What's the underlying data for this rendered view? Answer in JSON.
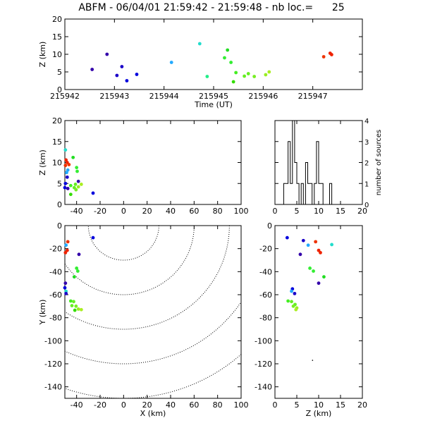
{
  "title": "ABFM - 06/04/01 21:59:42 - 21:59:48 - nb loc.=      25",
  "chart_data": [
    {
      "panel": "time-z",
      "type": "scatter",
      "xlabel": "Time (UT)",
      "ylabel": "Z (km)",
      "xlim": [
        215942,
        215948
      ],
      "ylim": [
        0,
        20
      ],
      "xticks": [
        "215942",
        "215943",
        "215944",
        "215945",
        "215946",
        "215947"
      ],
      "yticks": [
        "0",
        "5",
        "10",
        "15",
        "20"
      ],
      "points": [
        {
          "x": 215942.55,
          "y": 5.7,
          "color": "#3300aa"
        },
        {
          "x": 215942.85,
          "y": 10.0,
          "color": "#3300aa"
        },
        {
          "x": 215943.05,
          "y": 4.0,
          "color": "#1a00c8"
        },
        {
          "x": 215943.15,
          "y": 6.5,
          "color": "#1a00c8"
        },
        {
          "x": 215943.25,
          "y": 2.5,
          "color": "#0000dd"
        },
        {
          "x": 215943.45,
          "y": 4.3,
          "color": "#0000dd"
        },
        {
          "x": 215944.15,
          "y": 7.7,
          "color": "#22aaff"
        },
        {
          "x": 215944.72,
          "y": 13.0,
          "color": "#22ddcc"
        },
        {
          "x": 215944.87,
          "y": 3.7,
          "color": "#22ee88"
        },
        {
          "x": 215945.28,
          "y": 11.2,
          "color": "#22dd22"
        },
        {
          "x": 215945.22,
          "y": 9.0,
          "color": "#33ee33"
        },
        {
          "x": 215945.35,
          "y": 7.7,
          "color": "#33ee33"
        },
        {
          "x": 215945.4,
          "y": 2.2,
          "color": "#33dd00"
        },
        {
          "x": 215945.45,
          "y": 4.8,
          "color": "#44ee22"
        },
        {
          "x": 215945.62,
          "y": 3.8,
          "color": "#66ee22"
        },
        {
          "x": 215945.7,
          "y": 4.5,
          "color": "#66ee22"
        },
        {
          "x": 215945.82,
          "y": 3.7,
          "color": "#77ee22"
        },
        {
          "x": 215946.05,
          "y": 4.2,
          "color": "#99ee22"
        },
        {
          "x": 215946.12,
          "y": 5.0,
          "color": "#aaee22"
        },
        {
          "x": 215947.22,
          "y": 9.3,
          "color": "#ee3300"
        },
        {
          "x": 215947.35,
          "y": 10.3,
          "color": "#ee2200"
        },
        {
          "x": 215947.38,
          "y": 9.9,
          "color": "#ee2200"
        }
      ]
    },
    {
      "panel": "x-z",
      "type": "scatter",
      "xlabel": "",
      "ylabel": "Z (km)",
      "xlim": [
        -50,
        100
      ],
      "ylim": [
        0,
        20
      ],
      "xticks": [
        "-40",
        "-20",
        "0",
        "20",
        "40",
        "60",
        "80",
        "100"
      ],
      "yticks": [
        "0",
        "5",
        "10",
        "15",
        "20"
      ],
      "points": [
        {
          "x": -49.5,
          "y": 13.0,
          "color": "#22ddcc"
        },
        {
          "x": -49.0,
          "y": 10.6,
          "color": "#ee2200"
        },
        {
          "x": -48.0,
          "y": 10.0,
          "color": "#ee2200"
        },
        {
          "x": -46.5,
          "y": 9.5,
          "color": "#ee3300"
        },
        {
          "x": -49.5,
          "y": 9.3,
          "color": "#ee3300"
        },
        {
          "x": -47.5,
          "y": 8.2,
          "color": "#22aaff"
        },
        {
          "x": -48.5,
          "y": 7.6,
          "color": "#22aaff"
        },
        {
          "x": -48.0,
          "y": 6.5,
          "color": "#1a00c8"
        },
        {
          "x": -49.5,
          "y": 5.0,
          "color": "#0000dd"
        },
        {
          "x": -47.5,
          "y": 3.8,
          "color": "#3300aa"
        },
        {
          "x": -50.0,
          "y": 4.0,
          "color": "#0000dd"
        },
        {
          "x": -43.0,
          "y": 11.2,
          "color": "#22dd22"
        },
        {
          "x": -40.0,
          "y": 8.8,
          "color": "#33ee33"
        },
        {
          "x": -39.5,
          "y": 7.9,
          "color": "#33ee33"
        },
        {
          "x": -38.5,
          "y": 5.5,
          "color": "#3300aa"
        },
        {
          "x": -45.0,
          "y": 4.5,
          "color": "#44ee22"
        },
        {
          "x": -42.0,
          "y": 4.0,
          "color": "#66ee22"
        },
        {
          "x": -41.0,
          "y": 4.8,
          "color": "#66ee22"
        },
        {
          "x": -40.5,
          "y": 3.5,
          "color": "#77ee22"
        },
        {
          "x": -38.5,
          "y": 4.2,
          "color": "#99ee22"
        },
        {
          "x": -36.0,
          "y": 4.8,
          "color": "#aaee22"
        },
        {
          "x": -45.0,
          "y": 2.4,
          "color": "#33dd00"
        },
        {
          "x": -26.0,
          "y": 2.7,
          "color": "#0000dd"
        }
      ]
    },
    {
      "panel": "histogram",
      "type": "bar",
      "xlabel": "",
      "ylabel": "number of sources",
      "xlim": [
        0,
        20
      ],
      "ylim": [
        0,
        4
      ],
      "xticks": [
        "0",
        "5",
        "10",
        "15",
        "20"
      ],
      "yticks": [
        "0",
        "1",
        "2",
        "3",
        "4"
      ],
      "bin_width": 0.5,
      "bins_start": [
        2.0,
        2.5,
        3.0,
        3.5,
        4.0,
        4.5,
        5.0,
        5.5,
        6.0,
        6.5,
        7.0,
        7.5,
        8.0,
        8.5,
        9.0,
        9.5,
        10.0,
        10.5,
        11.0,
        11.5,
        12.0,
        12.5,
        13.0
      ],
      "counts": [
        1,
        1,
        3,
        1,
        4,
        2,
        1,
        0,
        1,
        0,
        2,
        1,
        1,
        0,
        1,
        3,
        1,
        1,
        0,
        0,
        0,
        1,
        0
      ]
    },
    {
      "panel": "x-y",
      "type": "scatter",
      "xlabel": "X (km)",
      "ylabel": "Y (km)",
      "xlim": [
        -50,
        100
      ],
      "ylim": [
        -150,
        0
      ],
      "xticks": [
        "-40",
        "-20",
        "0",
        "20",
        "40",
        "60",
        "80",
        "100"
      ],
      "yticks": [
        "0",
        "-20",
        "-40",
        "-60",
        "-80",
        "-100",
        "-120",
        "-140"
      ],
      "range_rings_km": [
        30,
        60,
        90,
        120,
        150,
        180
      ],
      "ring_center": [
        0,
        0
      ],
      "points": [
        {
          "x": -26.0,
          "y": -10.5,
          "color": "#0000dd"
        },
        {
          "x": -47.5,
          "y": -14.0,
          "color": "#ee3300"
        },
        {
          "x": -49.0,
          "y": -17.0,
          "color": "#22aaff"
        },
        {
          "x": -48.0,
          "y": -21.5,
          "color": "#ee2200"
        },
        {
          "x": -49.5,
          "y": -23.5,
          "color": "#ee2200"
        },
        {
          "x": -38.0,
          "y": -25.0,
          "color": "#3300aa"
        },
        {
          "x": -40.0,
          "y": -37.0,
          "color": "#33ee33"
        },
        {
          "x": -39.0,
          "y": -39.5,
          "color": "#33ee33"
        },
        {
          "x": -42.0,
          "y": -44.5,
          "color": "#22dd22"
        },
        {
          "x": -49.5,
          "y": -50.0,
          "color": "#3300aa"
        },
        {
          "x": -50.0,
          "y": -54.0,
          "color": "#0000dd"
        },
        {
          "x": -49.0,
          "y": -57.0,
          "color": "#22ddcc"
        },
        {
          "x": -49.0,
          "y": -59.0,
          "color": "#1a00c8"
        },
        {
          "x": -45.0,
          "y": -65.5,
          "color": "#44ee22"
        },
        {
          "x": -42.5,
          "y": -66.0,
          "color": "#66ee22"
        },
        {
          "x": -44.0,
          "y": -69.5,
          "color": "#66ee22"
        },
        {
          "x": -40.5,
          "y": -70.0,
          "color": "#77ee22"
        },
        {
          "x": -38.5,
          "y": -72.5,
          "color": "#99ee22"
        },
        {
          "x": -36.0,
          "y": -73.0,
          "color": "#aaee22"
        },
        {
          "x": -41.5,
          "y": -73.5,
          "color": "#33dd00"
        }
      ]
    },
    {
      "panel": "z-y",
      "type": "scatter",
      "xlabel": "Z (km)",
      "ylabel": "",
      "xlim": [
        0,
        20
      ],
      "ylim": [
        -150,
        0
      ],
      "xticks": [
        "0",
        "5",
        "10",
        "15",
        "20"
      ],
      "yticks": [
        "0",
        "-20",
        "-40",
        "-60",
        "-80",
        "-100",
        "-120",
        "-140"
      ],
      "points": [
        {
          "x": 2.8,
          "y": -10.5,
          "color": "#0000dd"
        },
        {
          "x": 6.5,
          "y": -13.0,
          "color": "#1a00c8"
        },
        {
          "x": 9.3,
          "y": -14.0,
          "color": "#ee3300"
        },
        {
          "x": 7.6,
          "y": -17.0,
          "color": "#22aaff"
        },
        {
          "x": 13.0,
          "y": -16.5,
          "color": "#22ddcc"
        },
        {
          "x": 10.0,
          "y": -21.5,
          "color": "#ee2200"
        },
        {
          "x": 10.4,
          "y": -23.5,
          "color": "#ee2200"
        },
        {
          "x": 5.8,
          "y": -25.0,
          "color": "#3300aa"
        },
        {
          "x": 8.0,
          "y": -37.0,
          "color": "#33ee33"
        },
        {
          "x": 8.8,
          "y": -39.5,
          "color": "#33ee33"
        },
        {
          "x": 11.2,
          "y": -44.5,
          "color": "#22dd22"
        },
        {
          "x": 10.0,
          "y": -50.0,
          "color": "#3300aa"
        },
        {
          "x": 4.0,
          "y": -55.0,
          "color": "#0000dd"
        },
        {
          "x": 3.8,
          "y": -57.0,
          "color": "#22aaff"
        },
        {
          "x": 4.5,
          "y": -59.0,
          "color": "#1a00c8"
        },
        {
          "x": 3.0,
          "y": -65.5,
          "color": "#44ee22"
        },
        {
          "x": 3.8,
          "y": -66.0,
          "color": "#66ee22"
        },
        {
          "x": 4.6,
          "y": -68.5,
          "color": "#66ee22"
        },
        {
          "x": 4.2,
          "y": -70.0,
          "color": "#77ee22"
        },
        {
          "x": 5.0,
          "y": -71.5,
          "color": "#99ee22"
        },
        {
          "x": 4.8,
          "y": -73.0,
          "color": "#aaee22"
        },
        {
          "x": 8.6,
          "y": -117.0,
          "color": "#000000",
          "size": "dot"
        }
      ]
    }
  ]
}
